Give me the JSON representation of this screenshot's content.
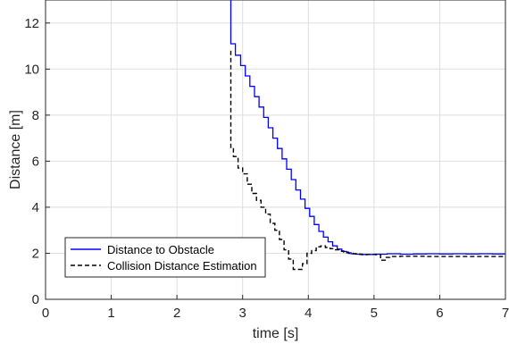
{
  "chart_data": {
    "type": "line",
    "title": "",
    "xlabel": "time [s]",
    "ylabel": "Distance [m]",
    "xlim": [
      0,
      7
    ],
    "ylim": [
      0,
      13
    ],
    "xticks": [
      0,
      1,
      2,
      3,
      4,
      5,
      6,
      7
    ],
    "yticks": [
      0,
      2,
      4,
      6,
      8,
      10,
      12
    ],
    "grid": true,
    "legend_position": "lower-left",
    "series": [
      {
        "name": "Distance to Obstacle",
        "color": "#0000ff",
        "style": "solid",
        "step": true,
        "x": [
          2.82,
          2.82,
          2.89,
          2.97,
          3.04,
          3.11,
          3.18,
          3.25,
          3.32,
          3.39,
          3.46,
          3.53,
          3.6,
          3.67,
          3.74,
          3.81,
          3.88,
          3.95,
          4.02,
          4.09,
          4.16,
          4.23,
          4.3,
          4.37,
          4.44,
          4.51,
          4.58,
          4.65,
          4.72,
          4.79,
          4.86,
          4.93,
          5.0,
          5.2,
          5.4,
          5.6,
          5.8,
          6.0,
          6.2,
          6.4,
          6.6,
          6.8,
          7.0
        ],
        "y": [
          13.0,
          11.1,
          10.6,
          10.15,
          9.7,
          9.25,
          8.8,
          8.35,
          7.9,
          7.45,
          7.0,
          6.55,
          6.1,
          5.65,
          5.2,
          4.75,
          4.35,
          3.95,
          3.6,
          3.25,
          2.95,
          2.7,
          2.5,
          2.32,
          2.18,
          2.08,
          2.02,
          1.98,
          1.96,
          1.95,
          1.95,
          1.95,
          1.96,
          1.98,
          1.96,
          1.97,
          1.98,
          1.97,
          1.98,
          1.97,
          1.98,
          1.97,
          1.97
        ]
      },
      {
        "name": "Collision Distance Estimation",
        "color": "#000000",
        "style": "dashed",
        "step": true,
        "x": [
          2.82,
          2.82,
          2.86,
          2.93,
          3.0,
          3.07,
          3.14,
          3.21,
          3.28,
          3.35,
          3.42,
          3.49,
          3.56,
          3.63,
          3.7,
          3.77,
          3.84,
          3.91,
          3.98,
          4.05,
          4.12,
          4.19,
          4.26,
          4.33,
          4.4,
          4.47,
          4.54,
          4.61,
          4.68,
          4.75,
          4.82,
          4.89,
          4.96,
          5.03,
          5.1,
          5.17,
          5.24,
          5.31,
          5.4,
          5.6,
          5.8,
          6.0,
          6.2,
          6.4,
          6.6,
          6.8,
          7.0
        ],
        "y": [
          10.8,
          6.6,
          6.2,
          5.7,
          5.45,
          5.0,
          4.6,
          4.3,
          4.0,
          3.7,
          3.3,
          3.0,
          2.6,
          2.15,
          1.75,
          1.3,
          1.3,
          1.55,
          2.0,
          2.12,
          2.28,
          2.32,
          2.25,
          2.2,
          2.15,
          2.1,
          2.05,
          2.0,
          1.98,
          1.96,
          1.94,
          1.95,
          1.95,
          1.94,
          1.7,
          1.82,
          1.86,
          1.86,
          1.87,
          1.87,
          1.86,
          1.86,
          1.86,
          1.86,
          1.86,
          1.86,
          1.86
        ]
      }
    ]
  }
}
